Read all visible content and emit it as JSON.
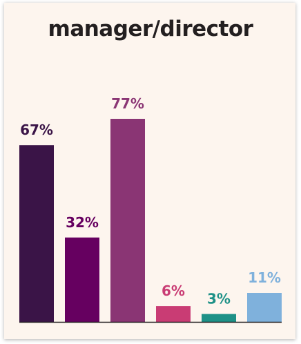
{
  "chart_data": {
    "type": "bar",
    "title": "manager/director",
    "xlabel": "",
    "ylabel": "",
    "ylim": [
      0,
      77
    ],
    "categories": [
      "",
      "",
      "",
      "",
      "",
      ""
    ],
    "values": [
      67,
      32,
      77,
      6,
      3,
      11
    ],
    "data_labels": [
      "67%",
      "32%",
      "77%",
      "6%",
      "3%",
      "11%"
    ],
    "colors": [
      "#3a1447",
      "#660060",
      "#8a3574",
      "#c93c74",
      "#1e9187",
      "#7fb1dc"
    ],
    "axis_color": "#231f20",
    "grid": false,
    "legend": "none"
  }
}
